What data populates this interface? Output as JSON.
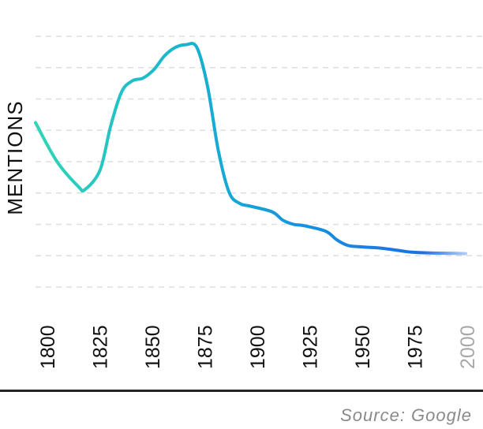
{
  "chart_data": {
    "type": "line",
    "title": "",
    "xlabel": "",
    "ylabel": "MENTIONS",
    "x_ticks": [
      "1800",
      "1825",
      "1850",
      "1875",
      "1900",
      "1925",
      "1950",
      "1975",
      "2000"
    ],
    "xlim": [
      1800,
      2000
    ],
    "ylim": [
      0,
      9
    ],
    "grid": true,
    "grid_lines": 9,
    "series": [
      {
        "x": [
          1800,
          1810,
          1820,
          1823,
          1830,
          1835,
          1840,
          1845,
          1850,
          1855,
          1860,
          1865,
          1870,
          1875,
          1880,
          1885,
          1890,
          1895,
          1900,
          1910,
          1915,
          1920,
          1925,
          1935,
          1940,
          1945,
          1950,
          1960,
          1970,
          1975,
          1985,
          1995,
          2000
        ],
        "y": [
          5.9,
          4.5,
          3.6,
          3.5,
          4.2,
          5.8,
          7.0,
          7.4,
          7.5,
          7.8,
          8.3,
          8.6,
          8.7,
          8.6,
          7.2,
          4.9,
          3.4,
          3.0,
          2.9,
          2.7,
          2.4,
          2.25,
          2.2,
          2.0,
          1.7,
          1.5,
          1.45,
          1.4,
          1.3,
          1.25,
          1.22,
          1.21,
          1.2
        ]
      }
    ],
    "colors": {
      "line_start": "#2ed6b6",
      "line_mid": "#15a8d6",
      "line_end": "#1a6fe6",
      "grid": "#dedede",
      "tick_text": "#111111",
      "tick_text_faded": "#a8a8a8"
    }
  },
  "footer": {
    "source": "Source: Google"
  }
}
